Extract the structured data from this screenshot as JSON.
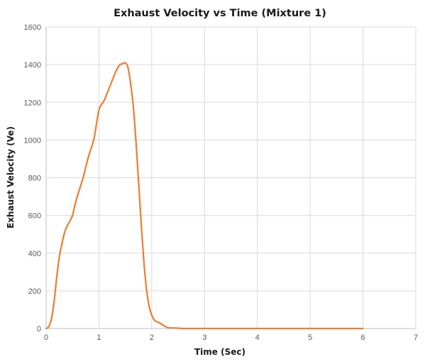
{
  "chart_data": {
    "type": "line",
    "title": "Exhaust Velocity vs Time (Mixture 1)",
    "xlabel": "Time (Sec)",
    "ylabel": "Exhaust Velocity (Ve)",
    "xlim": [
      0,
      7
    ],
    "ylim": [
      0,
      1600
    ],
    "xticks": [
      0,
      1,
      2,
      3,
      4,
      5,
      6,
      7
    ],
    "yticks": [
      0,
      200,
      400,
      600,
      800,
      1000,
      1200,
      1400,
      1600
    ],
    "grid": true,
    "legend": "none",
    "series": [
      {
        "color": "#ED7D31",
        "x": [
          0,
          0.05,
          0.1,
          0.15,
          0.2,
          0.25,
          0.3,
          0.35,
          0.4,
          0.45,
          0.5,
          0.55,
          0.6,
          0.7,
          0.8,
          0.9,
          0.95,
          1.0,
          1.05,
          1.1,
          1.2,
          1.3,
          1.35,
          1.4,
          1.45,
          1.5,
          1.55,
          1.6,
          1.65,
          1.7,
          1.75,
          1.8,
          1.85,
          1.9,
          1.95,
          2.0,
          2.05,
          2.1,
          2.15,
          2.2,
          2.3,
          2.4,
          2.5,
          2.6,
          2.7,
          3.0,
          4.0,
          5.0,
          6.0
        ],
        "y": [
          0,
          10,
          50,
          140,
          270,
          380,
          450,
          510,
          545,
          570,
          600,
          660,
          710,
          800,
          910,
          1000,
          1080,
          1160,
          1190,
          1210,
          1280,
          1350,
          1380,
          1400,
          1405,
          1410,
          1385,
          1300,
          1180,
          1000,
          780,
          560,
          360,
          210,
          120,
          70,
          45,
          35,
          30,
          20,
          5,
          3,
          2,
          0,
          0,
          0,
          0,
          0,
          0
        ]
      }
    ]
  }
}
